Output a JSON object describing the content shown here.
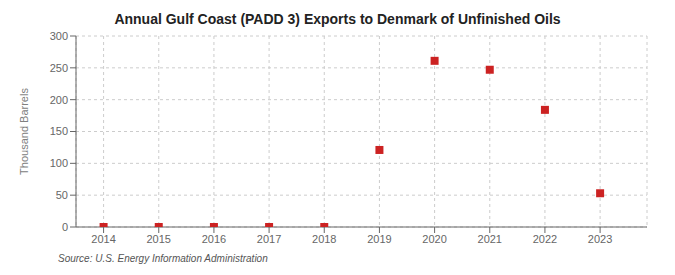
{
  "chart_data": {
    "type": "scatter",
    "title": "Annual Gulf Coast (PADD 3) Exports to Denmark of Unfinished Oils",
    "ylabel": "Thousand Barrels",
    "source": "Source: U.S. Energy Information Administration",
    "x": [
      2014,
      2015,
      2016,
      2017,
      2018,
      2019,
      2020,
      2021,
      2022,
      2023
    ],
    "values": [
      0,
      0,
      0,
      0,
      0,
      121,
      261,
      247,
      184,
      53
    ],
    "color": "#cc2222",
    "marker": "square",
    "xlim": [
      2013.5,
      2023.85
    ],
    "xticks": [
      2014,
      2015,
      2016,
      2017,
      2018,
      2019,
      2020,
      2021,
      2022,
      2023
    ],
    "ylim": [
      0,
      300
    ],
    "yticks": [
      0,
      50,
      100,
      150,
      200,
      250,
      300
    ],
    "grid": true
  }
}
